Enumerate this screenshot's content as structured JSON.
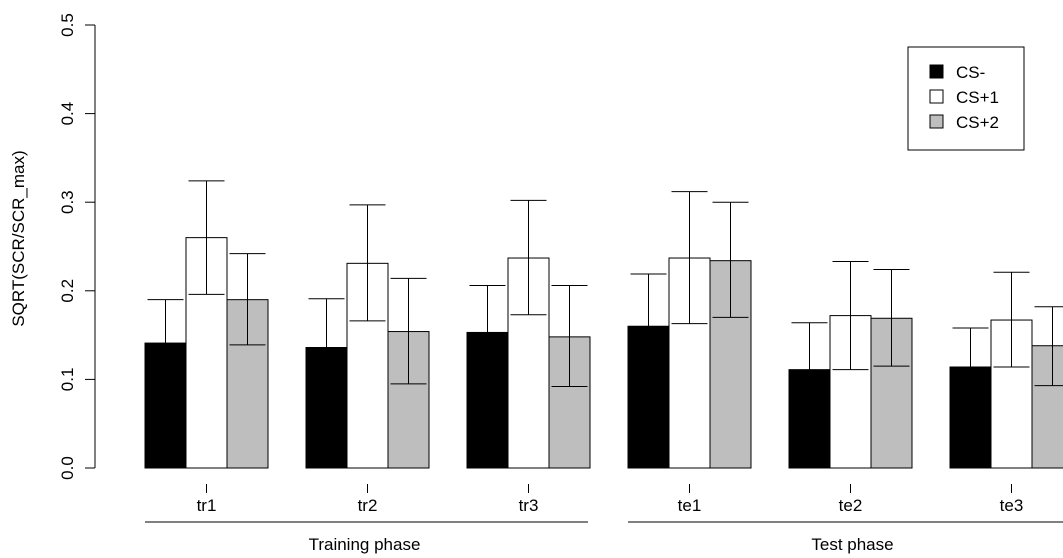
{
  "chart_data": {
    "type": "bar",
    "ylabel": "SQRT(SCR/SCR_max)",
    "ylim": [
      0,
      0.5
    ],
    "yticks": [
      "0.0",
      "0.1",
      "0.2",
      "0.3",
      "0.4",
      "0.5"
    ],
    "categories": [
      "tr1",
      "tr2",
      "tr3",
      "te1",
      "te2",
      "te3"
    ],
    "groups": [
      {
        "label": "Training phase",
        "categories": [
          "tr1",
          "tr2",
          "tr3"
        ]
      },
      {
        "label": "Test phase",
        "categories": [
          "te1",
          "te2",
          "te3"
        ]
      }
    ],
    "series": [
      {
        "name": "CS-",
        "color": "#000000",
        "values": [
          0.141,
          0.136,
          0.153,
          0.16,
          0.111,
          0.114
        ],
        "err_low": [
          0.092,
          0.083,
          0.1,
          0.101,
          0.056,
          0.07
        ],
        "err_high": [
          0.19,
          0.191,
          0.206,
          0.219,
          0.164,
          0.158
        ]
      },
      {
        "name": "CS+1",
        "color": "#ffffff",
        "values": [
          0.26,
          0.231,
          0.237,
          0.237,
          0.172,
          0.167
        ],
        "err_low": [
          0.196,
          0.166,
          0.173,
          0.163,
          0.111,
          0.114
        ],
        "err_high": [
          0.324,
          0.297,
          0.302,
          0.312,
          0.233,
          0.221
        ]
      },
      {
        "name": "CS+2",
        "color": "#bebebe",
        "values": [
          0.19,
          0.154,
          0.148,
          0.234,
          0.169,
          0.138
        ],
        "err_low": [
          0.139,
          0.095,
          0.092,
          0.17,
          0.115,
          0.093
        ],
        "err_high": [
          0.242,
          0.214,
          0.206,
          0.3,
          0.224,
          0.182
        ]
      }
    ],
    "legend_position": "top-right",
    "grid": false
  }
}
